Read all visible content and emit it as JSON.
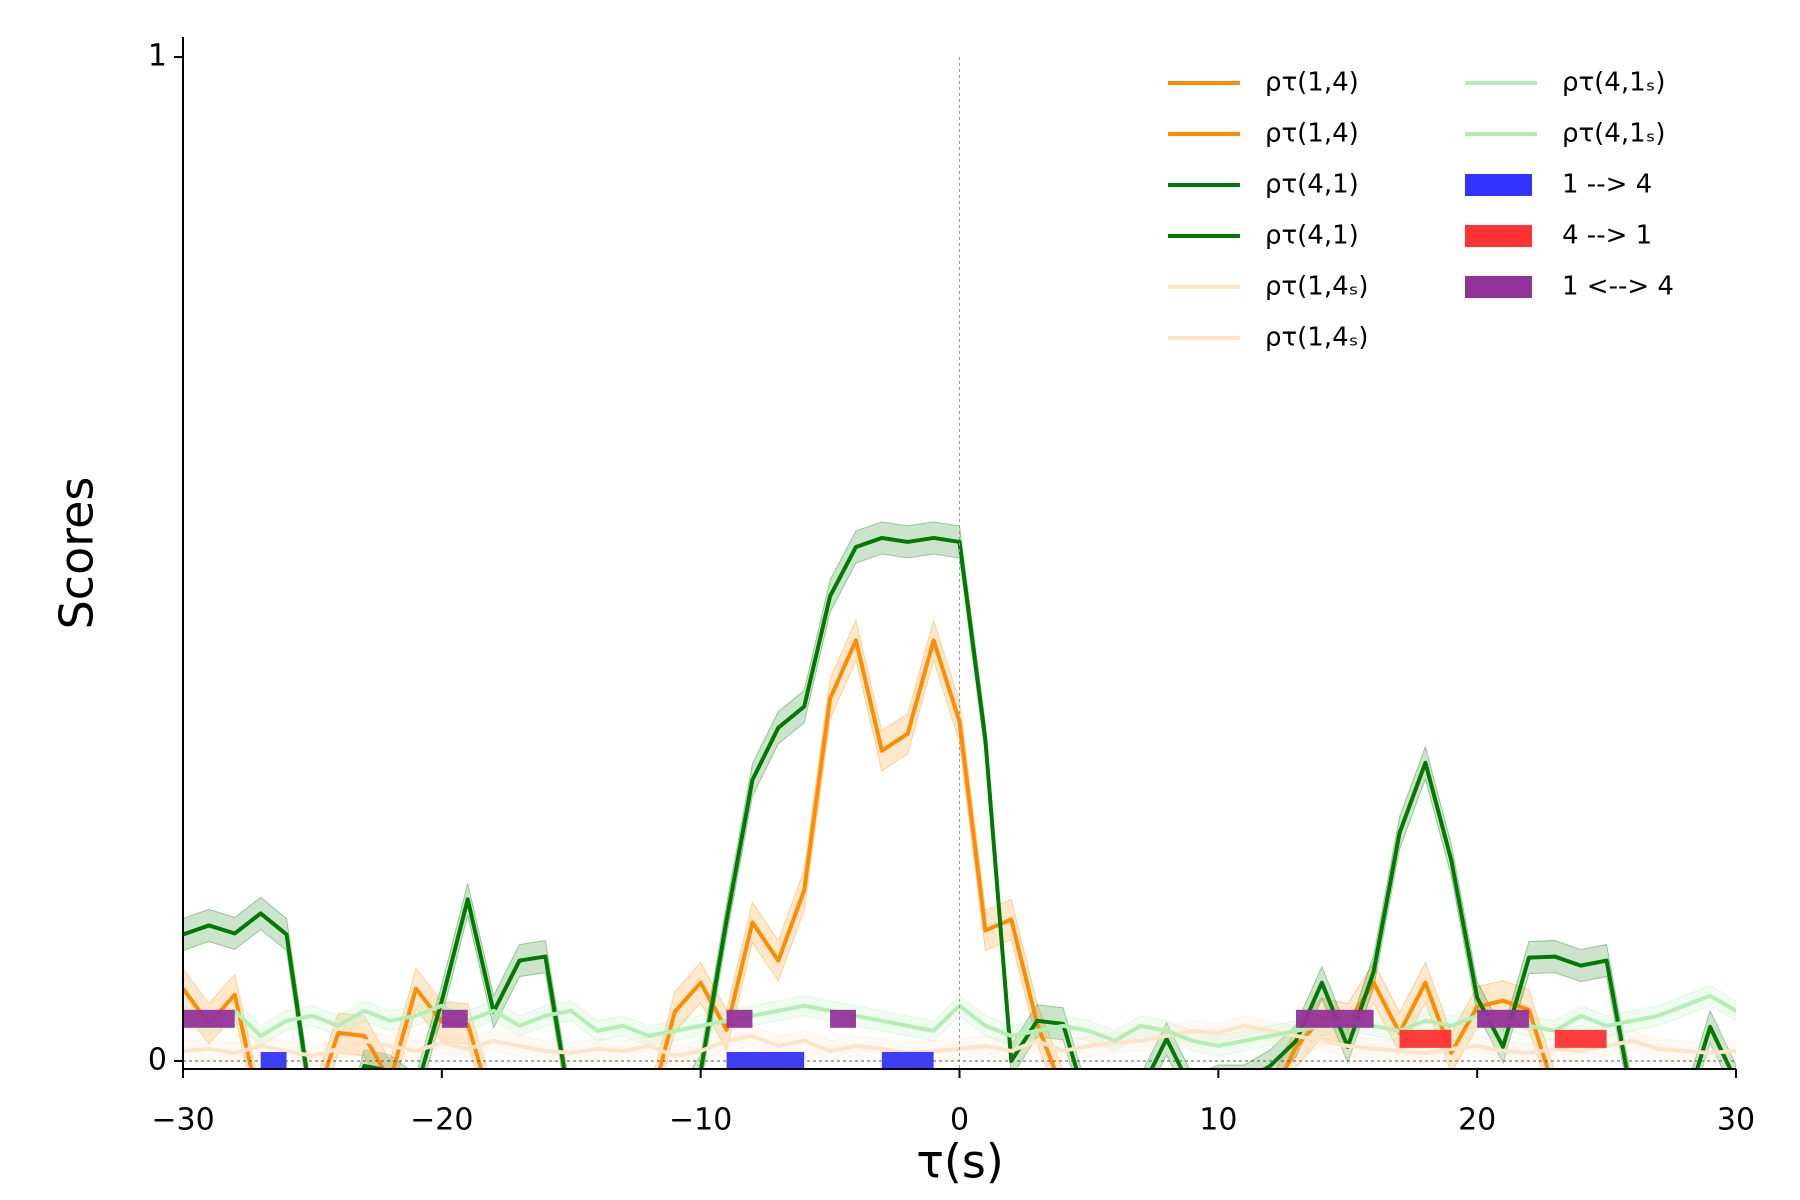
{
  "chart_data": {
    "type": "line",
    "xlabel": "τ(s)",
    "ylabel": "Scores",
    "x": [
      -30,
      -29,
      -28,
      -27,
      -26,
      -25,
      -24,
      -23,
      -22,
      -21,
      -20,
      -19,
      -18,
      -17,
      -16,
      -15,
      -14,
      -13,
      -12,
      -11,
      -10,
      -9,
      -8,
      -7,
      -6,
      -5,
      -4,
      -3,
      -2,
      -1,
      0,
      1,
      2,
      3,
      4,
      5,
      6,
      7,
      8,
      9,
      10,
      11,
      12,
      13,
      14,
      15,
      16,
      17,
      18,
      19,
      20,
      21,
      22,
      23,
      24,
      25,
      26,
      27,
      28,
      29,
      30
    ],
    "xlim": [
      -30,
      30
    ],
    "ylim": [
      -0.008,
      1.02
    ],
    "xticks": [
      {
        "value": -30,
        "label": "−30"
      },
      {
        "value": -20,
        "label": "−20"
      },
      {
        "value": -10,
        "label": "−10"
      },
      0,
      10,
      20,
      30
    ],
    "yticks": [
      0,
      1
    ],
    "vlines": [
      0
    ],
    "hlines": [
      0
    ],
    "series": [
      {
        "name": "ρτ(1,4)",
        "color": "#ff8c00",
        "band": 0.02,
        "values": [
          0.072,
          0.037,
          0.066,
          -0.05,
          -0.05,
          -0.05,
          0.028,
          0.025,
          -0.02,
          0.072,
          0.039,
          0.037,
          -0.05,
          -0.05,
          -0.05,
          -0.05,
          -0.05,
          -0.05,
          -0.05,
          0.049,
          0.078,
          0.031,
          0.138,
          0.1,
          0.17,
          0.361,
          0.419,
          0.309,
          0.326,
          0.419,
          0.338,
          0.13,
          0.141,
          0.037,
          -0.03,
          -0.04,
          -0.04,
          -0.04,
          -0.04,
          -0.04,
          -0.04,
          -0.04,
          -0.04,
          0.014,
          0.043,
          0.037,
          0.078,
          0.028,
          0.078,
          0.008,
          0.054,
          0.06,
          0.051,
          -0.03,
          -0.03,
          -0.03,
          -0.03,
          -0.03,
          -0.03,
          -0.03,
          -0.03
        ]
      },
      {
        "name": "ρτ(4,1)",
        "color": "#007a00",
        "band": 0.016,
        "values": [
          0.126,
          0.135,
          0.127,
          0.147,
          0.126,
          -0.05,
          -0.1,
          -0.005,
          -0.01,
          -0.03,
          0.06,
          0.161,
          0.049,
          0.1,
          0.104,
          -0.05,
          -0.05,
          -0.05,
          -0.05,
          -0.05,
          -0.01,
          0.14,
          0.28,
          0.332,
          0.353,
          0.463,
          0.512,
          0.521,
          0.517,
          0.521,
          0.517,
          0.32,
          0.0,
          0.04,
          0.037,
          -0.05,
          -0.05,
          -0.03,
          0.022,
          -0.03,
          -0.02,
          -0.02,
          -0.005,
          0.02,
          0.078,
          0.014,
          0.089,
          0.227,
          0.297,
          0.2,
          0.063,
          0.014,
          0.103,
          0.104,
          0.095,
          0.1,
          -0.04,
          -0.05,
          -0.05,
          0.034,
          -0.02
        ]
      },
      {
        "name": "ρτ(1,4ₛ)",
        "color": "#fde3c8",
        "band": 0.01,
        "values": [
          0.01,
          0.012,
          0.008,
          0.015,
          0.01,
          0.005,
          0.012,
          0.02,
          0.015,
          0.01,
          0.018,
          0.012,
          0.02,
          0.015,
          0.01,
          0.008,
          0.012,
          0.01,
          0.015,
          0.005,
          0.01,
          0.02,
          0.025,
          0.015,
          0.02,
          0.01,
          0.015,
          0.012,
          0.008,
          0.01,
          0.012,
          0.015,
          0.01,
          0.02,
          0.01,
          0.015,
          0.018,
          0.02,
          0.025,
          0.03,
          0.028,
          0.035,
          0.03,
          0.025,
          0.02,
          0.015,
          0.012,
          0.01,
          0.008,
          0.012,
          0.015,
          0.01,
          0.008,
          0.012,
          0.01,
          0.015,
          0.02,
          0.012,
          0.01,
          0.008,
          0.01
        ]
      },
      {
        "name": "ρτ(4,1ₛ)",
        "color": "#b5eeb5",
        "band": 0.01,
        "values": [
          0.045,
          0.035,
          0.05,
          0.025,
          0.04,
          0.045,
          0.035,
          0.05,
          0.04,
          0.045,
          0.055,
          0.04,
          0.05,
          0.035,
          0.045,
          0.05,
          0.03,
          0.035,
          0.025,
          0.03,
          0.035,
          0.04,
          0.045,
          0.05,
          0.055,
          0.05,
          0.045,
          0.04,
          0.035,
          0.03,
          0.055,
          0.035,
          0.025,
          0.03,
          0.035,
          0.03,
          0.02,
          0.035,
          0.03,
          0.02,
          0.015,
          0.02,
          0.025,
          0.03,
          0.035,
          0.04,
          0.035,
          0.03,
          0.04,
          0.035,
          0.045,
          0.04,
          0.035,
          0.03,
          0.045,
          0.035,
          0.04,
          0.045,
          0.055,
          0.065,
          0.05
        ]
      }
    ],
    "intervals": [
      {
        "name": "1 --> 4",
        "color": "#3333ff",
        "level": 0.0,
        "spans": [
          [
            -27,
            -26
          ],
          [
            -9,
            -6
          ],
          [
            -3,
            -1
          ]
        ]
      },
      {
        "name": "4 --> 1",
        "color": "#ff3333",
        "level": 0.022,
        "spans": [
          [
            17,
            19
          ],
          [
            23,
            25
          ]
        ]
      },
      {
        "name": "1 <--> 4",
        "color": "#933399",
        "level": 0.042,
        "spans": [
          [
            -30,
            -28
          ],
          [
            -20,
            -19
          ],
          [
            -9,
            -8
          ],
          [
            -5,
            -4
          ],
          [
            13,
            16
          ],
          [
            20,
            22
          ]
        ]
      }
    ]
  }
}
